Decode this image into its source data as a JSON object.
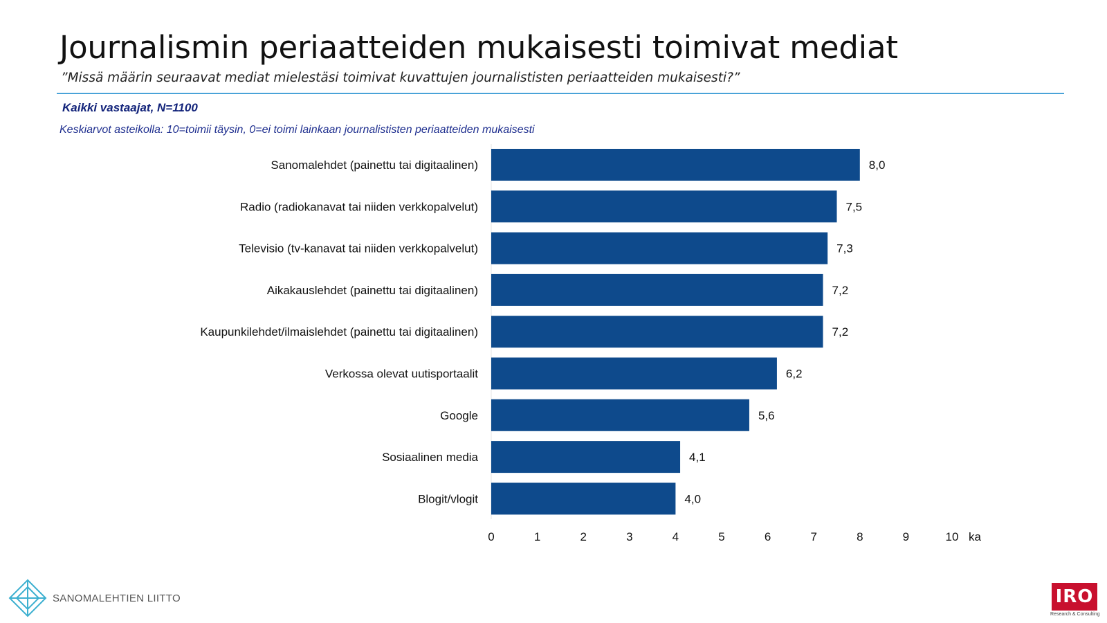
{
  "header": {
    "title": "Journalismin periaatteiden mukaisesti toimivat mediat",
    "subtitle": "”Missä määrin seuraavat mediat mielestäsi toimivat kuvattujen journalististen periaatteiden mukaisesti?”",
    "base": "Kaikki vastaajat, N=1100",
    "note": "Keskiarvot asteikolla: 10=toimii täysin, 0=ei toimi lainkaan journalististen periaatteiden mukaisesti"
  },
  "chart_data": {
    "type": "bar",
    "orientation": "horizontal",
    "categories": [
      "Sanomalehdet (painettu tai digitaalinen)",
      "Radio (radiokanavat tai niiden verkkopalvelut)",
      "Televisio (tv-kanavat tai niiden verkkopalvelut)",
      "Aikakauslehdet (painettu tai digitaalinen)",
      "Kaupunkilehdet/ilmaislehdet (painettu tai digitaalinen)",
      "Verkossa olevat uutisportaalit",
      "Google",
      "Sosiaalinen media",
      "Blogit/vlogit"
    ],
    "values": [
      8.0,
      7.5,
      7.3,
      7.2,
      7.2,
      6.2,
      5.6,
      4.1,
      4.0
    ],
    "value_labels": [
      "8,0",
      "7,5",
      "7,3",
      "7,2",
      "7,2",
      "6,2",
      "5,6",
      "4,1",
      "4,0"
    ],
    "xlim": [
      0,
      10
    ],
    "x_ticks": [
      "0",
      "1",
      "2",
      "3",
      "4",
      "5",
      "6",
      "7",
      "8",
      "9",
      "10"
    ],
    "x_unit_label": "ka",
    "bar_color": "#0e4a8c",
    "grid": false
  },
  "logos": {
    "left_text": "SANOMALEHTIEN LIITTO",
    "right_text": "IRO",
    "right_sub": "Research & Consulting"
  }
}
